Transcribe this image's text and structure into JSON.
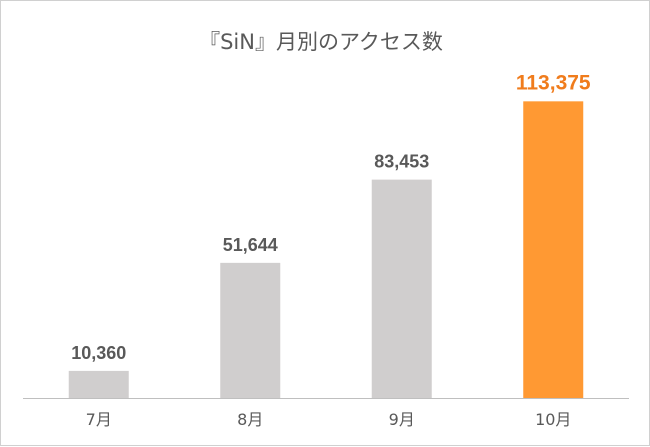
{
  "chart_data": {
    "type": "bar",
    "title": "『SiN』月別のアクセス数",
    "categories": [
      "7月",
      "8月",
      "9月",
      "10月"
    ],
    "values": [
      10360,
      51644,
      83453,
      113375
    ],
    "value_labels": [
      "10,360",
      "51,644",
      "83,453",
      "113,375"
    ],
    "highlight_index": 3,
    "ylim": [
      0,
      120000
    ],
    "grid": false,
    "legend": "none"
  },
  "colors": {
    "bar": "#d0cece",
    "highlight": "#ff9933",
    "label": "#595959",
    "highlight_label": "#f07c1c",
    "axis": "#bfbfbf"
  }
}
